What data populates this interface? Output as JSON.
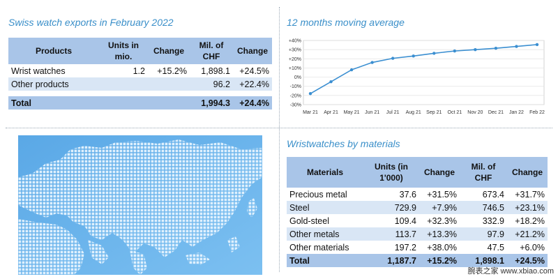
{
  "exports_panel": {
    "title": "Swiss watch exports in February 2022",
    "headers": [
      "Products",
      "Units in mio.",
      "Change",
      "Mil. of CHF",
      "Change"
    ],
    "rows": [
      {
        "product": "Wrist watches",
        "units": "1.2",
        "units_change": "+15.2%",
        "chf": "1,898.1",
        "chf_change": "+24.5%"
      },
      {
        "product": "Other products",
        "units": "",
        "units_change": "",
        "chf": "96.2",
        "chf_change": "+22.4%"
      }
    ],
    "total": {
      "product": "Total",
      "units": "",
      "units_change": "",
      "chf": "1,994.3",
      "chf_change": "+24.4%"
    }
  },
  "moving_average_panel": {
    "title": "12 months moving average"
  },
  "materials_panel": {
    "title": "Wristwatches by materials",
    "headers": [
      "Materials",
      "Units (in 1'000)",
      "Change",
      "Mil. of CHF",
      "Change"
    ],
    "rows": [
      {
        "material": "Precious metal",
        "units": "37.6",
        "units_change": "+31.5%",
        "chf": "673.4",
        "chf_change": "+31.7%"
      },
      {
        "material": "Steel",
        "units": "729.9",
        "units_change": "+7.9%",
        "chf": "746.5",
        "chf_change": "+23.1%"
      },
      {
        "material": "Gold-steel",
        "units": "109.4",
        "units_change": "+32.3%",
        "chf": "332.9",
        "chf_change": "+18.2%"
      },
      {
        "material": "Other metals",
        "units": "113.7",
        "units_change": "+13.3%",
        "chf": "97.9",
        "chf_change": "+21.2%"
      },
      {
        "material": "Other materials",
        "units": "197.2",
        "units_change": "+38.0%",
        "chf": "47.5",
        "chf_change": "+6.0%"
      }
    ],
    "total": {
      "material": "Total",
      "units": "1,187.7",
      "units_change": "+15.2%",
      "chf": "1,898.1",
      "chf_change": "+24.5%"
    }
  },
  "map": {
    "description_icon": "world-map-icon",
    "color": "#6fb3ea"
  },
  "watermark": "腕表之家 www.xbiao.com",
  "colors": {
    "accent": "#3a8fc9",
    "header_fill": "#a9c5e8",
    "row_shade": "#d9e6f5",
    "line": "#3b8fd1"
  },
  "chart_data": {
    "type": "line",
    "title": "12 months moving average",
    "x": [
      "Mar 21",
      "Apr 21",
      "May 21",
      "Jun 21",
      "Jul 21",
      "Aug 21",
      "Sep 21",
      "Oct 21",
      "Nov 20",
      "Dec 21",
      "Jan 22",
      "Feb 22"
    ],
    "series": [
      {
        "values": [
          -18,
          -5,
          8,
          16,
          20.5,
          23,
          26,
          28.5,
          30,
          31.5,
          33.5,
          35.5
        ]
      }
    ],
    "yticks": [
      "+40%",
      "+30%",
      "+20%",
      "+10%",
      "0%",
      "-10%",
      "-20%",
      "-30%"
    ],
    "ylim": [
      -30,
      40
    ],
    "xlabel": "",
    "ylabel": "",
    "grid": true
  }
}
